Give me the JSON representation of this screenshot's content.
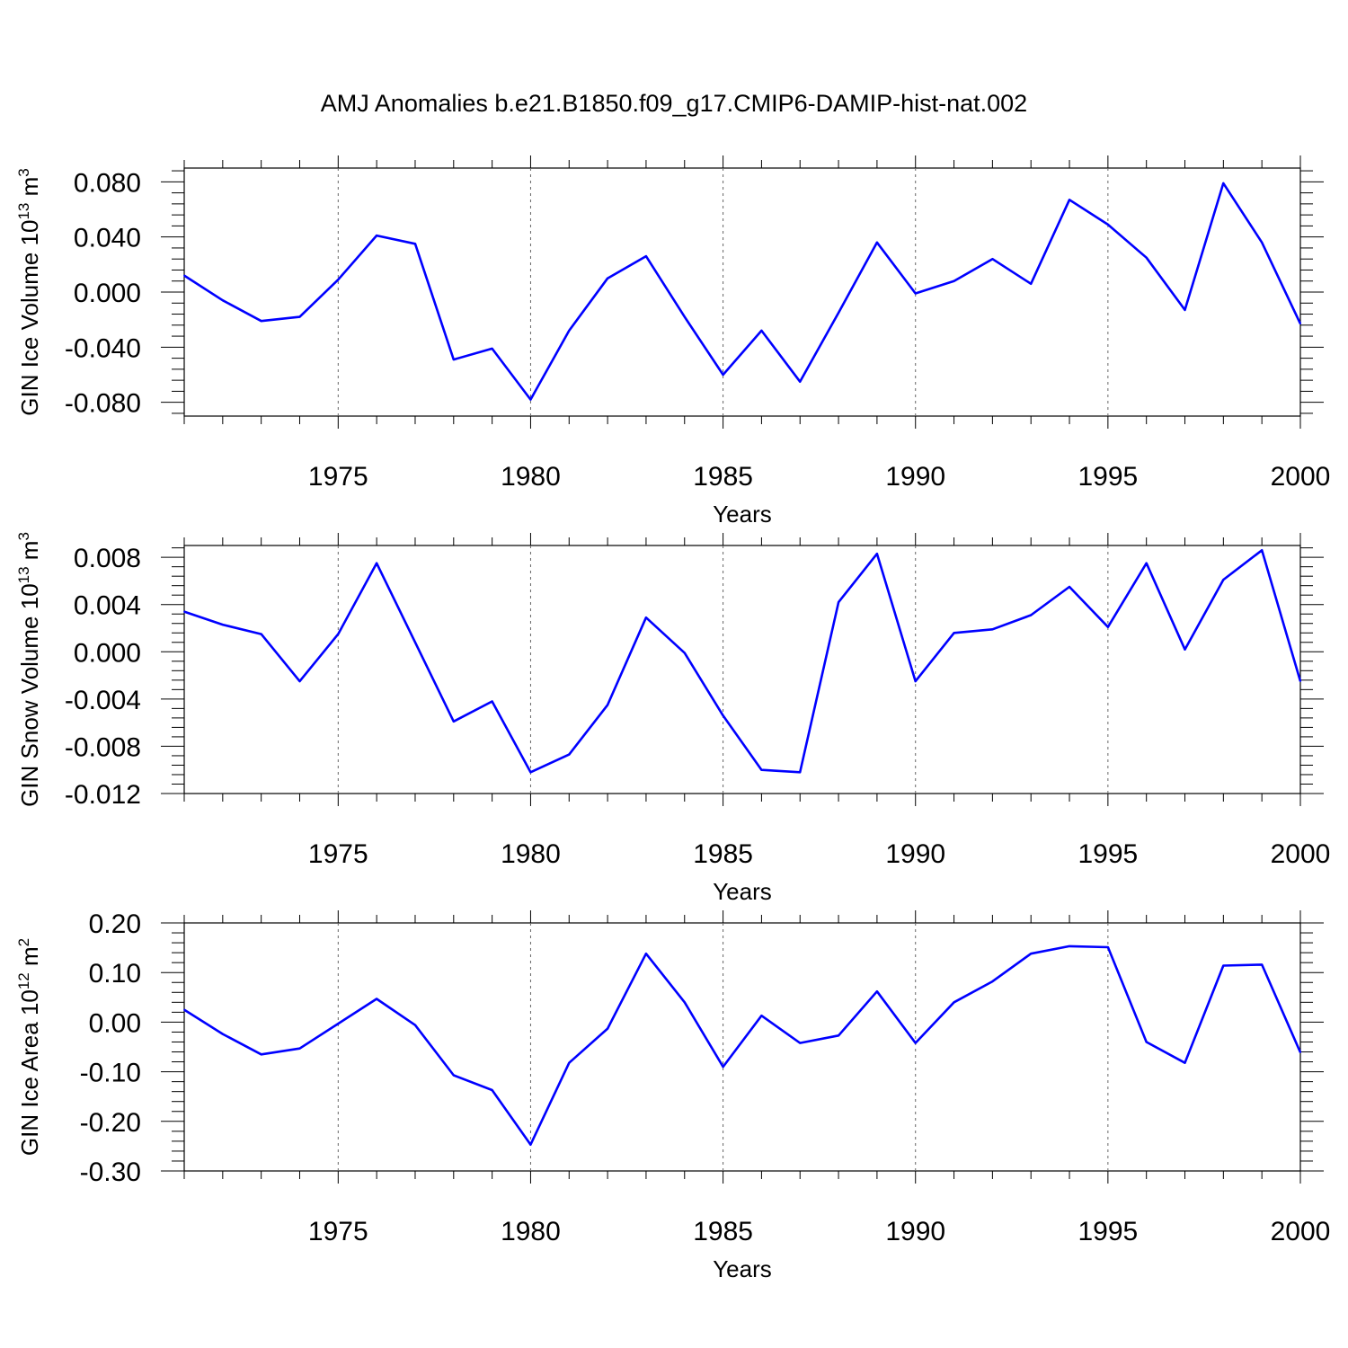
{
  "figure_title": "AMJ Anomalies b.e21.B1850.f09_g17.CMIP6-DAMIP-hist-nat.002",
  "line_color": "#0000ff",
  "chart_data": [
    {
      "type": "line",
      "title": "",
      "xlabel": "Years",
      "ylabel": {
        "prefix": "GIN Ice Volume 10",
        "exp": "13",
        "unit": " m",
        "unit_exp": "3"
      },
      "xlim": [
        1971,
        2000
      ],
      "ylim": [
        -0.09,
        0.09
      ],
      "x_ticks": [
        "1975",
        "1980",
        "1985",
        "1990",
        "1995",
        "2000"
      ],
      "y_ticks": [
        "0.080",
        "0.040",
        "0.000",
        "-0.040",
        "-0.080"
      ],
      "y_tick_values": [
        0.08,
        0.04,
        0.0,
        -0.04,
        -0.08
      ],
      "grid": "dashed vertical lines at labeled years",
      "x": [
        1971,
        1972,
        1973,
        1974,
        1975,
        1976,
        1977,
        1978,
        1979,
        1980,
        1981,
        1982,
        1983,
        1984,
        1985,
        1986,
        1987,
        1988,
        1989,
        1990,
        1991,
        1992,
        1993,
        1994,
        1995,
        1996,
        1997,
        1998,
        1999,
        2000
      ],
      "values": [
        0.012,
        -0.006,
        -0.021,
        -0.018,
        0.009,
        0.041,
        0.035,
        -0.049,
        -0.041,
        -0.078,
        -0.028,
        0.01,
        0.026,
        -0.018,
        -0.06,
        -0.028,
        -0.065,
        -0.015,
        0.036,
        -0.001,
        0.008,
        0.024,
        0.006,
        0.067,
        0.049,
        0.025,
        -0.013,
        0.079,
        0.036,
        -0.023
      ]
    },
    {
      "type": "line",
      "title": "",
      "xlabel": "Years",
      "ylabel": {
        "prefix": "GIN Snow Volume 10",
        "exp": "13",
        "unit": " m",
        "unit_exp": "3"
      },
      "xlim": [
        1971,
        2000
      ],
      "ylim": [
        -0.012,
        0.009
      ],
      "x_ticks": [
        "1975",
        "1980",
        "1985",
        "1990",
        "1995",
        "2000"
      ],
      "y_ticks": [
        "0.008",
        "0.004",
        "0.000",
        "-0.004",
        "-0.008",
        "-0.012"
      ],
      "y_tick_values": [
        0.008,
        0.004,
        0.0,
        -0.004,
        -0.008,
        -0.012
      ],
      "grid": "dashed vertical lines at labeled years",
      "x": [
        1971,
        1972,
        1973,
        1974,
        1975,
        1976,
        1977,
        1978,
        1979,
        1980,
        1981,
        1982,
        1983,
        1984,
        1985,
        1986,
        1987,
        1988,
        1989,
        1990,
        1991,
        1992,
        1993,
        1994,
        1995,
        1996,
        1997,
        1998,
        1999,
        2000
      ],
      "values": [
        0.0034,
        0.0023,
        0.0015,
        -0.0025,
        0.0015,
        0.0075,
        0.0008,
        -0.0059,
        -0.0042,
        -0.0102,
        -0.0087,
        -0.0045,
        0.0029,
        -0.0001,
        -0.0054,
        -0.01,
        -0.0102,
        0.0042,
        0.0083,
        -0.0025,
        0.0016,
        0.0019,
        0.0031,
        0.0055,
        0.0021,
        0.0075,
        0.0002,
        0.0061,
        0.0086,
        -0.0025
      ]
    },
    {
      "type": "line",
      "title": "",
      "xlabel": "Years",
      "ylabel": {
        "prefix": "GIN Ice Area 10",
        "exp": "12",
        "unit": " m",
        "unit_exp": "2"
      },
      "xlim": [
        1971,
        2000
      ],
      "ylim": [
        -0.3,
        0.2
      ],
      "x_ticks": [
        "1975",
        "1980",
        "1985",
        "1990",
        "1995",
        "2000"
      ],
      "y_ticks": [
        "0.20",
        "0.10",
        "0.00",
        "-0.10",
        "-0.20",
        "-0.30"
      ],
      "y_tick_values": [
        0.2,
        0.1,
        0.0,
        -0.1,
        -0.2,
        -0.3
      ],
      "grid": "dashed vertical lines at labeled years",
      "x": [
        1971,
        1972,
        1973,
        1974,
        1975,
        1976,
        1977,
        1978,
        1979,
        1980,
        1981,
        1982,
        1983,
        1984,
        1985,
        1986,
        1987,
        1988,
        1989,
        1990,
        1991,
        1992,
        1993,
        1994,
        1995,
        1996,
        1997,
        1998,
        1999,
        2000
      ],
      "values": [
        0.025,
        -0.024,
        -0.065,
        -0.053,
        -0.003,
        0.047,
        -0.006,
        -0.107,
        -0.137,
        -0.247,
        -0.082,
        -0.013,
        0.138,
        0.04,
        -0.09,
        0.013,
        -0.042,
        -0.027,
        0.062,
        -0.042,
        0.04,
        0.082,
        0.138,
        0.153,
        0.151,
        -0.04,
        -0.082,
        0.114,
        0.116,
        -0.061
      ]
    }
  ]
}
